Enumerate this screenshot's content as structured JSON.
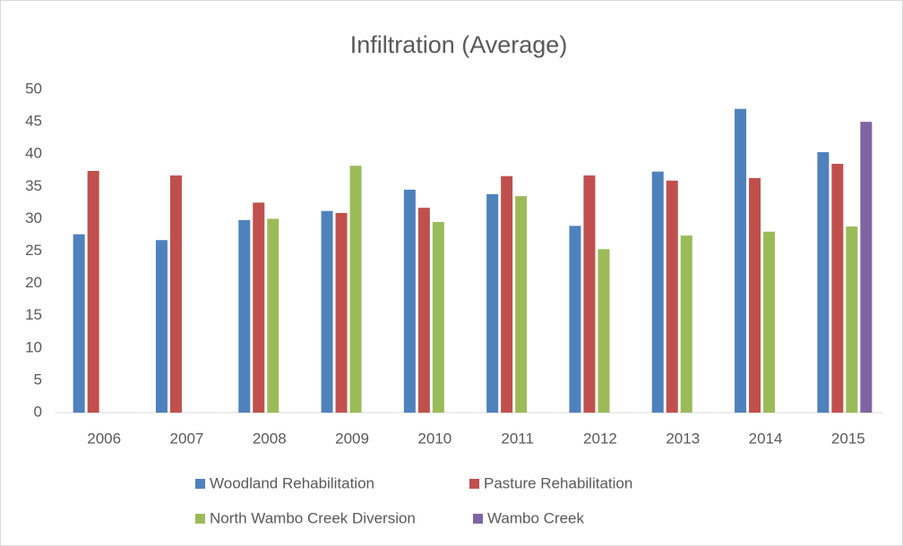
{
  "chart_data": {
    "type": "bar",
    "title": "Infiltration (Average)",
    "categories": [
      "2006",
      "2007",
      "2008",
      "2009",
      "2010",
      "2011",
      "2012",
      "2013",
      "2014",
      "2015"
    ],
    "series": [
      {
        "name": "Woodland Rehabilitation",
        "color": "#4f81bd",
        "values": [
          27.6,
          26.7,
          29.8,
          31.2,
          34.5,
          33.8,
          28.9,
          37.3,
          47,
          40.3
        ]
      },
      {
        "name": "Pasture Rehabilitation",
        "color": "#c0504d",
        "values": [
          37.4,
          36.7,
          32.5,
          30.9,
          31.7,
          36.6,
          36.7,
          35.9,
          36.3,
          38.5
        ]
      },
      {
        "name": "North Wambo Creek Diversion",
        "color": "#9bbb59",
        "values": [
          null,
          null,
          30,
          38.2,
          29.5,
          33.5,
          25.3,
          27.4,
          28,
          28.8
        ]
      },
      {
        "name": "Wambo Creek",
        "color": "#8064a2",
        "values": [
          null,
          null,
          null,
          null,
          null,
          null,
          null,
          null,
          null,
          45
        ]
      }
    ],
    "ylim": [
      0,
      50
    ],
    "yticks": [
      0,
      5,
      10,
      15,
      20,
      25,
      30,
      35,
      40,
      45,
      50
    ],
    "grid": false
  }
}
